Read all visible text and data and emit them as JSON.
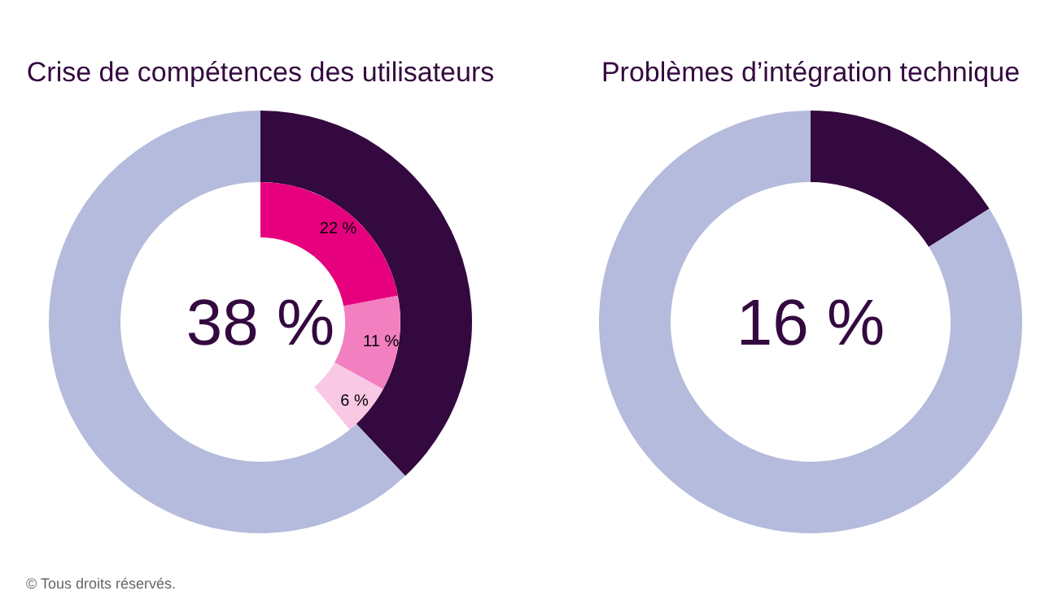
{
  "chart_data": [
    {
      "type": "donut",
      "title": "Crise de compétences des utilisateurs",
      "series": [
        {
          "values": [
            38,
            62
          ],
          "colors": [
            "#34093f",
            "#b4bbdc"
          ]
        },
        {
          "values": [
            22,
            11,
            6
          ],
          "colors": [
            "#e6007e",
            "#f27fc0",
            "#f9c8e4"
          ],
          "value_labels": [
            "22 %",
            "11 %",
            "6 %"
          ]
        }
      ],
      "annotations": [
        "38 %",
        "© Tous droits réservés."
      ]
    },
    {
      "type": "donut",
      "title": "Problèmes d’intégration technique",
      "series": [
        {
          "values": [
            16,
            84
          ],
          "colors": [
            "#34093f",
            "#b4bbdc"
          ]
        }
      ],
      "annotations": [
        "16 %"
      ]
    }
  ]
}
